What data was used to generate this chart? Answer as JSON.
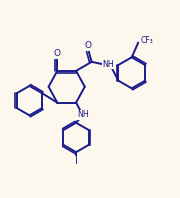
{
  "background_color": "#fcf8ee",
  "line_color": "#1a1a8c",
  "line_width": 1.4,
  "fig_width": 1.8,
  "fig_height": 1.98,
  "dpi": 100,
  "xlim": [
    -0.05,
    1.05
  ],
  "ylim": [
    -0.04,
    1.04
  ]
}
